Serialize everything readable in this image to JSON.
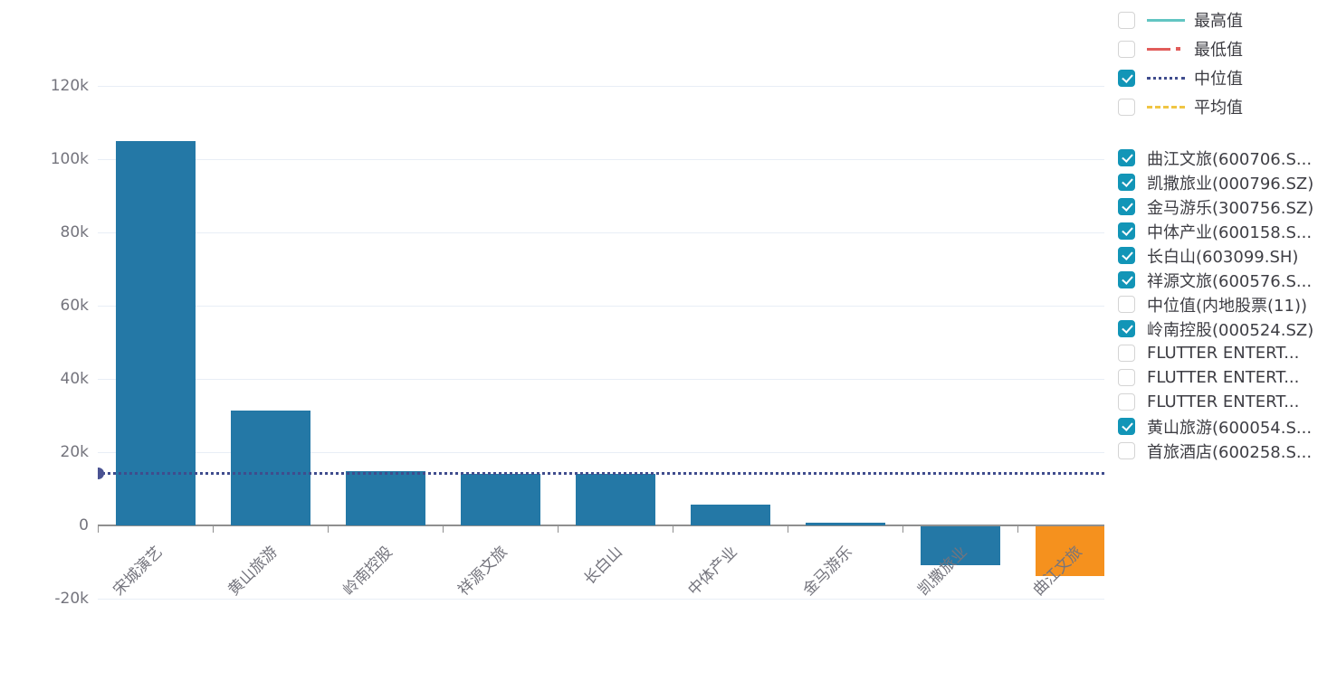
{
  "chart_data": {
    "type": "bar",
    "title": "",
    "xlabel": "",
    "ylabel": "",
    "categories": [
      "宋城演艺",
      "黄山旅游",
      "岭南控股",
      "祥源文旅",
      "长白山",
      "中体产业",
      "金马游乐",
      "凯撒旅业",
      "曲江文旅"
    ],
    "values": [
      105000,
      31400,
      14700,
      14100,
      14100,
      5800,
      700,
      -10500,
      -13500
    ],
    "bar_colors": [
      "#2478a6",
      "#2478a6",
      "#2478a6",
      "#2478a6",
      "#2478a6",
      "#2478a6",
      "#2478a6",
      "#2478a6",
      "#f5911e"
    ],
    "ylim": [
      -20000,
      130000
    ],
    "grid": true,
    "legend_position": "right",
    "y_ticks": [
      {
        "value": -20000,
        "label": "-20k"
      },
      {
        "value": 0,
        "label": "0"
      },
      {
        "value": 20000,
        "label": "20k"
      },
      {
        "value": 40000,
        "label": "40k"
      },
      {
        "value": 60000,
        "label": "60k"
      },
      {
        "value": 80000,
        "label": "80k"
      },
      {
        "value": 100000,
        "label": "100k"
      },
      {
        "value": 120000,
        "label": "120k"
      }
    ],
    "median_line": {
      "name": "中位值",
      "value": 14400,
      "style": "dotted",
      "color": "#3f4c8d",
      "dot_color": "#4a5392"
    }
  },
  "legend": {
    "checkbox_checked_color": "#1295b7",
    "stat_items": [
      {
        "label": "最高值",
        "checked": false,
        "line_style": "solid",
        "color": "#62c5c2"
      },
      {
        "label": "最低值",
        "checked": false,
        "line_style": "dash-dot",
        "color": "#e15c5a"
      },
      {
        "label": "中位值",
        "checked": true,
        "line_style": "dotted",
        "color": "#3f4c8d"
      },
      {
        "label": "平均值",
        "checked": false,
        "line_style": "dashed",
        "color": "#f0c544"
      }
    ],
    "series_items": [
      {
        "label": "曲江文旅(600706.S...",
        "checked": true
      },
      {
        "label": "凯撒旅业(000796.SZ)",
        "checked": true
      },
      {
        "label": "金马游乐(300756.SZ)",
        "checked": true
      },
      {
        "label": "中体产业(600158.S...",
        "checked": true
      },
      {
        "label": "长白山(603099.SH)",
        "checked": true
      },
      {
        "label": "祥源文旅(600576.S...",
        "checked": true
      },
      {
        "label": "中位值(内地股票(11))",
        "checked": false
      },
      {
        "label": "岭南控股(000524.SZ)",
        "checked": true
      },
      {
        "label": "FLUTTER ENTERT...",
        "checked": false
      },
      {
        "label": "FLUTTER ENTERT...",
        "checked": false
      },
      {
        "label": "FLUTTER ENTERT...",
        "checked": false
      },
      {
        "label": "黄山旅游(600054.S...",
        "checked": true
      },
      {
        "label": "首旅酒店(600258.S...",
        "checked": false
      }
    ]
  },
  "colors": {
    "bar_default": "#2478a6",
    "bar_highlight": "#f5911e",
    "gridline": "#e8eef6",
    "axis": "#8f8f8f",
    "axis_label": "#74747d",
    "legend_text": "#3b3b41"
  }
}
